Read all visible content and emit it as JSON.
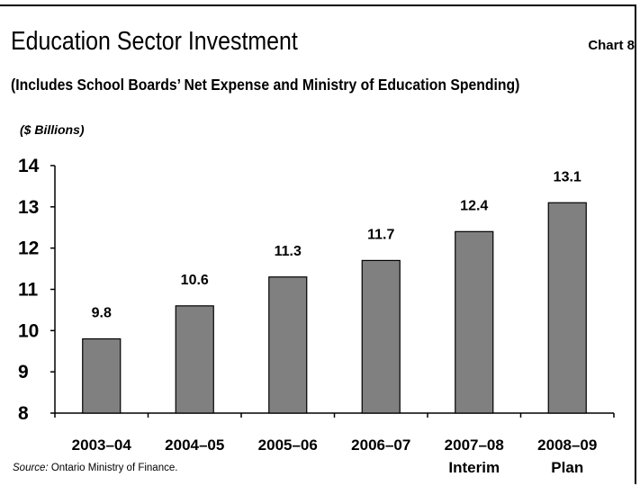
{
  "header": {
    "title": "Education Sector Investment",
    "chart_number": "Chart 8",
    "subtitle": "(Includes School Boards’ Net Expense and Ministry of Education Spending)",
    "unit": "($ Billions)"
  },
  "footer": {
    "source_label": "Source:",
    "source_text": " Ontario Ministry of Finance."
  },
  "colors": {
    "bar": "#808080",
    "bar_stroke": "#000000",
    "axis": "#000000"
  },
  "chart_data": {
    "type": "bar",
    "title": "Education Sector Investment",
    "ylabel": "($ Billions)",
    "xlabel": "",
    "categories": [
      [
        "2003–04"
      ],
      [
        "2004–05"
      ],
      [
        "2005–06"
      ],
      [
        "2006–07"
      ],
      [
        "2007–08",
        "Interim"
      ],
      [
        "2008–09",
        "Plan"
      ]
    ],
    "values": [
      9.8,
      10.6,
      11.3,
      11.7,
      12.4,
      13.1
    ],
    "value_labels": [
      "9.8",
      "10.6",
      "11.3",
      "11.7",
      "12.4",
      "13.1"
    ],
    "ylim": [
      8,
      14
    ],
    "yticks": [
      8,
      9,
      10,
      11,
      12,
      13,
      14
    ],
    "grid": false,
    "legend": "none"
  }
}
